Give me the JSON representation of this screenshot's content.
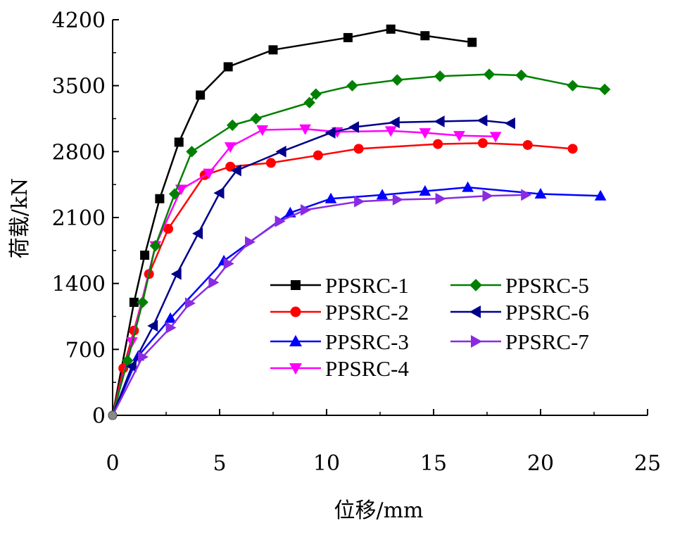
{
  "chart_data": {
    "type": "line",
    "xlabel": "位移/mm",
    "ylabel": "荷载/kN",
    "xlim": [
      0,
      25
    ],
    "ylim": [
      0,
      4200
    ],
    "xticks": [
      "0",
      "5",
      "10",
      "15",
      "20",
      "25"
    ],
    "yticks": [
      "0",
      "700",
      "1400",
      "2100",
      "2800",
      "3500",
      "4200"
    ],
    "grid": false,
    "legend_position": "center-right",
    "series": [
      {
        "name": "PPSRC-1",
        "color": "#000000",
        "marker": "square",
        "x": [
          0,
          1.0,
          1.5,
          2.2,
          3.1,
          4.1,
          5.4,
          7.5,
          11.0,
          13.0,
          14.6,
          16.8
        ],
        "y": [
          0,
          1200,
          1700,
          2300,
          2900,
          3400,
          3700,
          3880,
          4010,
          4100,
          4030,
          3960
        ]
      },
      {
        "name": "PPSRC-2",
        "color": "#ff0000",
        "marker": "circle",
        "x": [
          0,
          0.5,
          1.0,
          1.7,
          2.6,
          4.3,
          5.5,
          7.4,
          9.6,
          11.5,
          15.2,
          17.3,
          19.4,
          21.5
        ],
        "y": [
          0,
          500,
          900,
          1500,
          1980,
          2550,
          2640,
          2680,
          2760,
          2830,
          2880,
          2890,
          2870,
          2830
        ]
      },
      {
        "name": "PPSRC-3",
        "color": "#0000ff",
        "marker": "triangle-up",
        "x": [
          0,
          1.2,
          2.7,
          5.2,
          8.3,
          10.2,
          12.6,
          14.6,
          16.6,
          20.0,
          22.8
        ],
        "y": [
          0,
          630,
          1030,
          1640,
          2150,
          2300,
          2340,
          2380,
          2420,
          2350,
          2330
        ]
      },
      {
        "name": "PPSRC-4",
        "color": "#ff00ff",
        "marker": "triangle-down",
        "x": [
          0,
          0.9,
          2.0,
          3.2,
          4.5,
          5.5,
          7.0,
          9.0,
          10.5,
          13.0,
          14.6,
          16.2,
          17.9
        ],
        "y": [
          0,
          780,
          1800,
          2400,
          2570,
          2850,
          3030,
          3040,
          3010,
          3020,
          3000,
          2970,
          2960
        ]
      },
      {
        "name": "PPSRC-5",
        "color": "#008000",
        "marker": "diamond",
        "x": [
          0,
          0.7,
          1.4,
          2.0,
          2.9,
          3.7,
          5.6,
          6.7,
          9.2,
          9.5,
          11.2,
          13.3,
          15.3,
          17.6,
          19.1,
          21.5,
          23.0
        ],
        "y": [
          0,
          580,
          1200,
          1800,
          2350,
          2800,
          3080,
          3150,
          3320,
          3410,
          3500,
          3560,
          3600,
          3620,
          3610,
          3500,
          3460
        ]
      },
      {
        "name": "PPSRC-6",
        "color": "#00008b",
        "marker": "triangle-left",
        "x": [
          0,
          0.9,
          1.9,
          3.0,
          4.0,
          5.0,
          5.8,
          7.9,
          10.2,
          11.3,
          13.2,
          15.3,
          17.3,
          18.6
        ],
        "y": [
          0,
          520,
          950,
          1500,
          1930,
          2360,
          2600,
          2800,
          3000,
          3060,
          3110,
          3120,
          3130,
          3100
        ]
      },
      {
        "name": "PPSRC-7",
        "color": "#8a2be2",
        "marker": "triangle-right",
        "x": [
          0,
          1.4,
          2.7,
          3.6,
          4.7,
          5.4,
          6.4,
          7.8,
          9.0,
          11.5,
          13.3,
          15.3,
          17.5,
          19.3
        ],
        "y": [
          0,
          620,
          930,
          1190,
          1410,
          1610,
          1840,
          2060,
          2180,
          2270,
          2290,
          2300,
          2330,
          2340
        ]
      }
    ]
  }
}
